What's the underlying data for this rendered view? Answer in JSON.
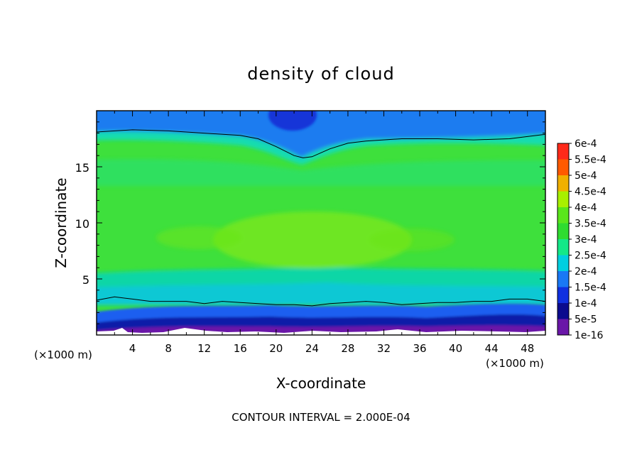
{
  "chart_data": {
    "type": "heatmap",
    "title": "density of cloud",
    "xlabel": "X-coordinate",
    "ylabel": "Z-coordinate",
    "x_unit_label": "(×1000 m)",
    "z_unit_label": "(×1000 m)",
    "x_ticks": [
      "4",
      "8",
      "12",
      "16",
      "20",
      "24",
      "28",
      "32",
      "36",
      "40",
      "44",
      "48"
    ],
    "z_ticks": [
      "5",
      "10",
      "15"
    ],
    "xlim": [
      0,
      50
    ],
    "ylim": [
      0,
      20
    ],
    "footer": "CONTOUR INTERVAL = 2.000E-04",
    "colorbar": {
      "labels": [
        "1e-16",
        "5e-5",
        "1e-4",
        "1.5e-4",
        "2e-4",
        "2.5e-4",
        "3e-4",
        "3.5e-4",
        "4e-4",
        "4.5e-4",
        "5e-4",
        "5.5e-4",
        "6e-4"
      ],
      "colors": [
        "#6a16a8",
        "#0b0b8e",
        "#1030e0",
        "#1a78f5",
        "#00cfe0",
        "#14e888",
        "#2fdc30",
        "#5ae61c",
        "#a8f000",
        "#f0b000",
        "#ff5a00",
        "#ff2a1a",
        "#ff8a8a"
      ]
    },
    "contour_lines": [
      {
        "level": "2e-4",
        "points": [
          [
            0,
            18.1
          ],
          [
            4,
            18.3
          ],
          [
            8,
            18.2
          ],
          [
            12,
            18.0
          ],
          [
            16,
            17.8
          ],
          [
            18,
            17.5
          ],
          [
            20,
            16.8
          ],
          [
            22,
            16.0
          ],
          [
            23,
            15.8
          ],
          [
            24,
            15.9
          ],
          [
            26,
            16.6
          ],
          [
            28,
            17.1
          ],
          [
            30,
            17.3
          ],
          [
            34,
            17.5
          ],
          [
            38,
            17.5
          ],
          [
            42,
            17.4
          ],
          [
            46,
            17.5
          ],
          [
            50,
            17.9
          ]
        ]
      },
      {
        "level": "2e-4",
        "points": [
          [
            0,
            3.1
          ],
          [
            2,
            3.4
          ],
          [
            4,
            3.2
          ],
          [
            6,
            3.0
          ],
          [
            8,
            3.0
          ],
          [
            10,
            3.0
          ],
          [
            12,
            2.8
          ],
          [
            14,
            3.0
          ],
          [
            16,
            2.9
          ],
          [
            18,
            2.8
          ],
          [
            20,
            2.7
          ],
          [
            22,
            2.7
          ],
          [
            24,
            2.6
          ],
          [
            26,
            2.8
          ],
          [
            28,
            2.9
          ],
          [
            30,
            3.0
          ],
          [
            32,
            2.9
          ],
          [
            34,
            2.7
          ],
          [
            36,
            2.8
          ],
          [
            38,
            2.9
          ],
          [
            40,
            2.9
          ],
          [
            42,
            3.0
          ],
          [
            44,
            3.0
          ],
          [
            46,
            3.2
          ],
          [
            48,
            3.2
          ],
          [
            50,
            3.0
          ]
        ]
      }
    ]
  }
}
